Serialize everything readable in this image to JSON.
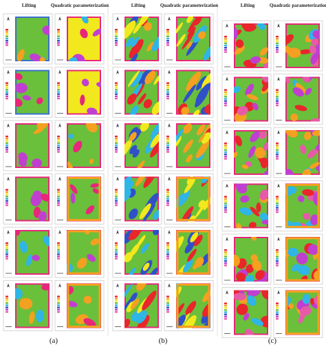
{
  "columns": [
    {
      "headers": [
        "Lifting",
        "Quadratic parameterization"
      ],
      "label": "(a)"
    },
    {
      "headers": [
        "Lifting",
        "Quadratic parameterization"
      ],
      "label": "(b)"
    },
    {
      "headers": [
        "Lifting",
        "Quadratic parameterization"
      ],
      "label": "(c)"
    }
  ]
}
